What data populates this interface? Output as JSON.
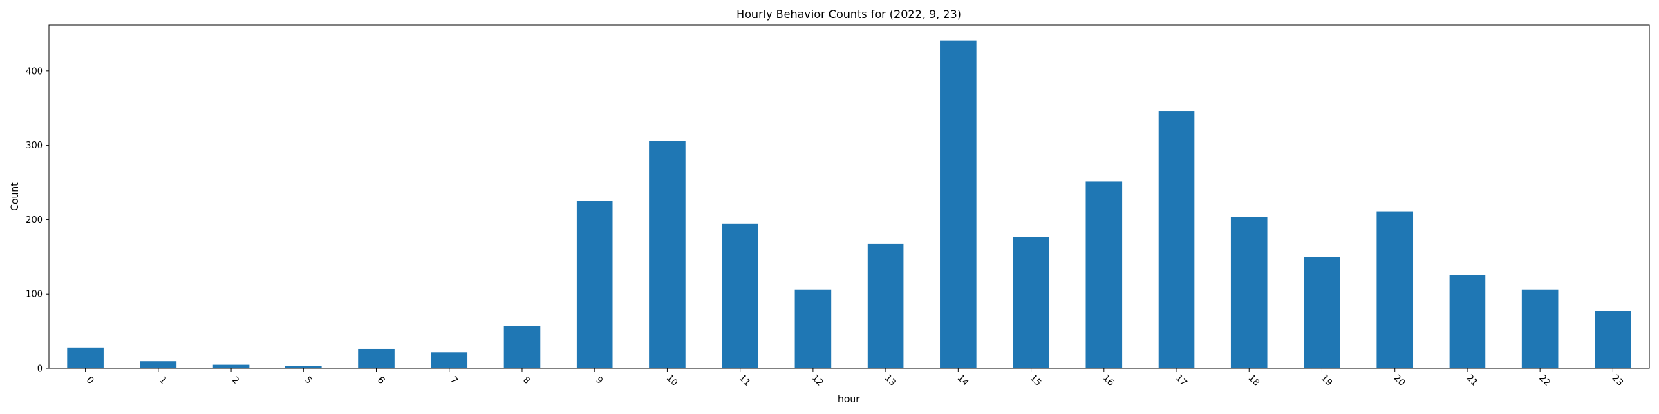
{
  "chart_data": {
    "type": "bar",
    "title": "Hourly Behavior Counts for (2022, 9, 23)",
    "xlabel": "hour",
    "ylabel": "Count",
    "categories": [
      "0",
      "1",
      "2",
      "5",
      "6",
      "7",
      "8",
      "9",
      "10",
      "11",
      "12",
      "13",
      "14",
      "15",
      "16",
      "17",
      "18",
      "19",
      "20",
      "21",
      "22",
      "23"
    ],
    "values": [
      28,
      10,
      5,
      3,
      26,
      22,
      57,
      225,
      306,
      195,
      106,
      168,
      441,
      177,
      251,
      346,
      204,
      150,
      211,
      126,
      106,
      77
    ],
    "ylim": [
      0,
      462
    ],
    "yticks": [
      0,
      100,
      200,
      300,
      400
    ],
    "ytick_labels": [
      "0",
      "100",
      "200",
      "300",
      "400"
    ],
    "bar_color": "#1f77b4",
    "grid": false,
    "legend": "none"
  }
}
